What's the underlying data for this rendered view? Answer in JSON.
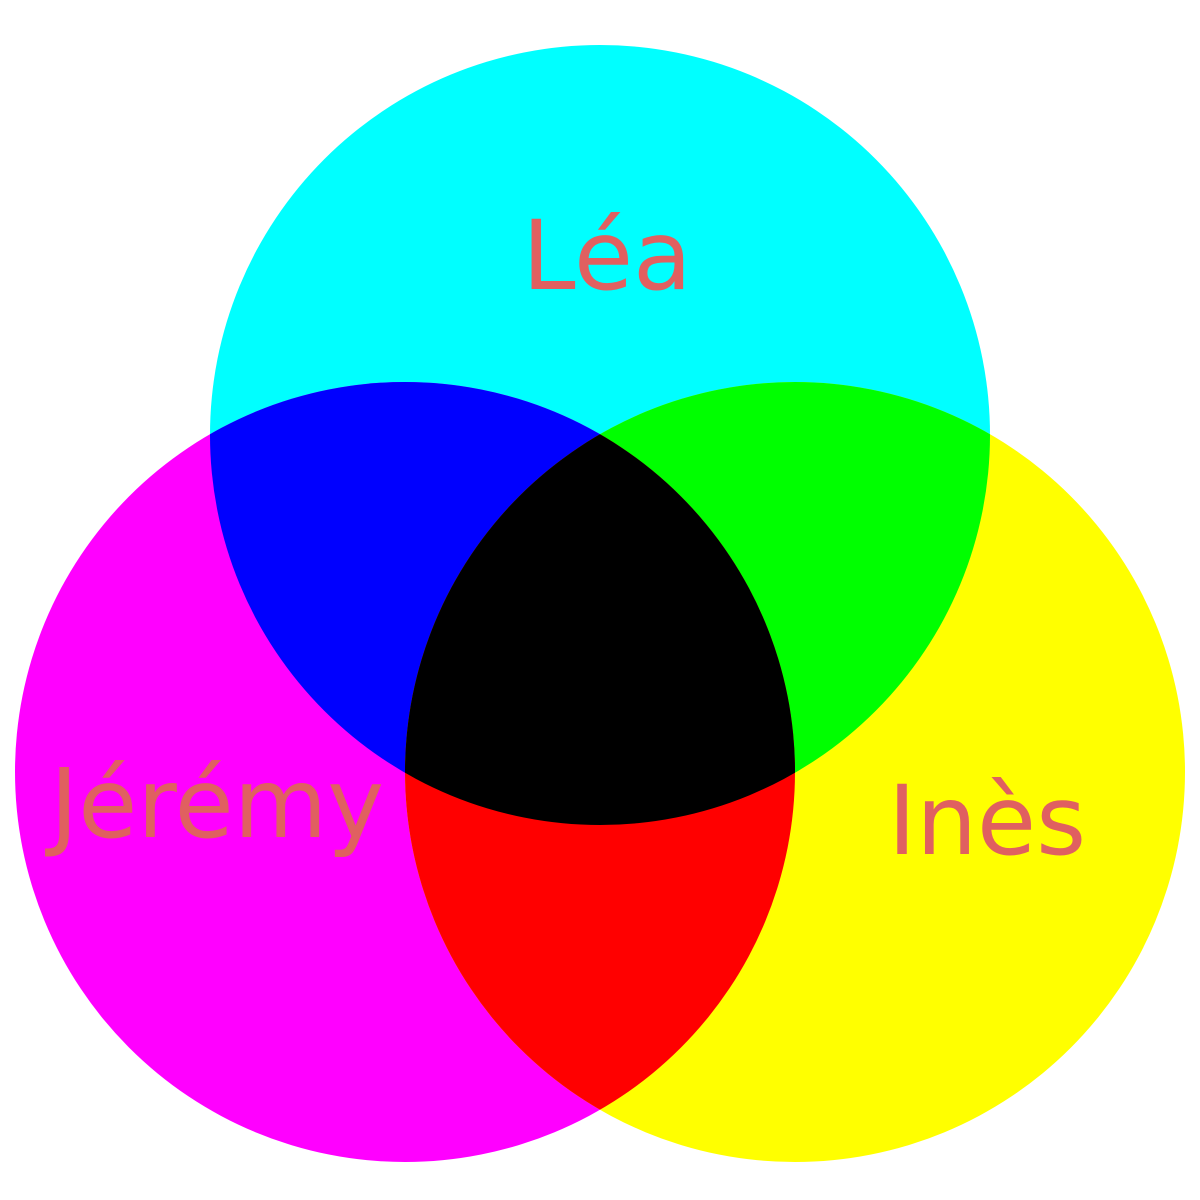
{
  "diagram": {
    "type": "venn-3-subtractive",
    "background": "#ffffff",
    "label_color": "#e06060",
    "sets": [
      {
        "id": "top",
        "label": "Léa",
        "color": "#00ffff"
      },
      {
        "id": "left",
        "label": "Jérémy",
        "color": "#ff00ff"
      },
      {
        "id": "right",
        "label": "Inès",
        "color": "#ffff00"
      }
    ],
    "overlaps": {
      "top_left": "#0000ff",
      "top_right": "#00ff00",
      "left_right": "#ff0000",
      "all": "#000000"
    }
  }
}
